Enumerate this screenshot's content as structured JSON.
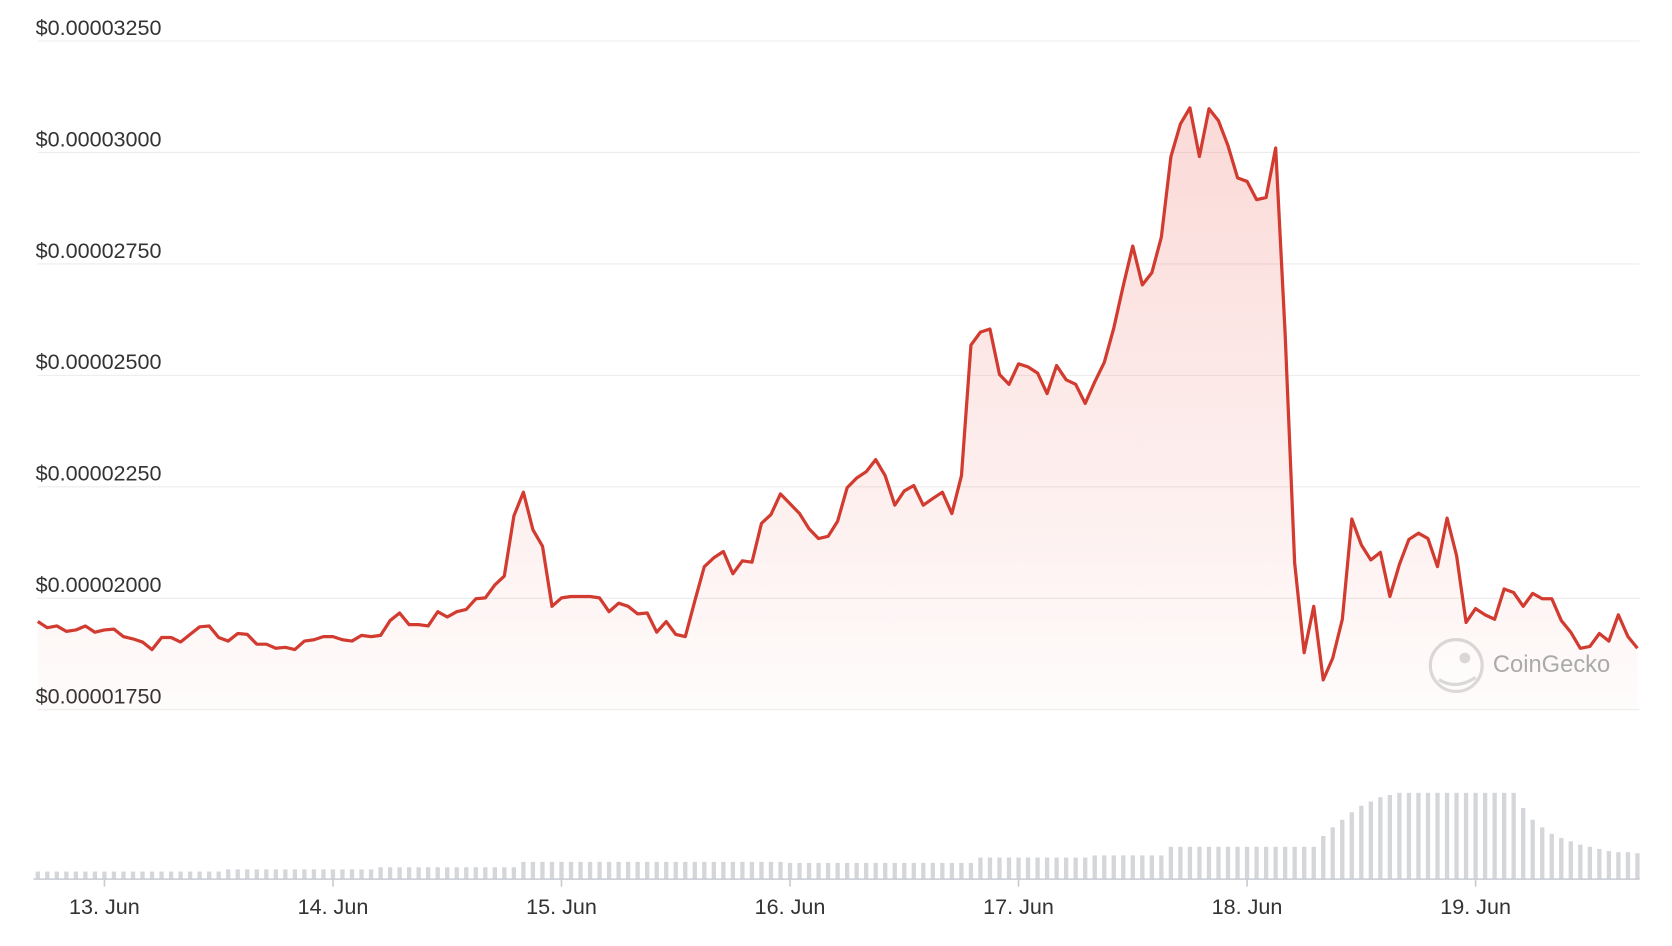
{
  "chart_data": {
    "type": "line",
    "color": "#d23b2f",
    "grid": true,
    "watermark": "CoinGecko",
    "ylim": [
      1.75e-05,
      3.25e-05
    ],
    "yticks": [
      {
        "value": 1.75e-05,
        "label": "$0.00001750"
      },
      {
        "value": 2e-05,
        "label": "$0.00002000"
      },
      {
        "value": 2.25e-05,
        "label": "$0.00002250"
      },
      {
        "value": 2.5e-05,
        "label": "$0.00002500"
      },
      {
        "value": 2.75e-05,
        "label": "$0.00002750"
      },
      {
        "value": 3e-05,
        "label": "$0.00003000"
      },
      {
        "value": 3.25e-05,
        "label": "$0.00003250"
      }
    ],
    "categories": [
      null,
      null,
      null,
      null,
      null,
      null,
      null,
      "13. Jun",
      null,
      null,
      null,
      null,
      null,
      null,
      null,
      null,
      null,
      null,
      null,
      null,
      null,
      null,
      null,
      null,
      null,
      null,
      null,
      null,
      null,
      null,
      null,
      "14. Jun",
      null,
      null,
      null,
      null,
      null,
      null,
      null,
      null,
      null,
      null,
      null,
      null,
      null,
      null,
      null,
      null,
      null,
      null,
      null,
      null,
      null,
      null,
      null,
      "15. Jun",
      null,
      null,
      null,
      null,
      null,
      null,
      null,
      null,
      null,
      null,
      null,
      null,
      null,
      null,
      null,
      null,
      null,
      null,
      null,
      null,
      null,
      null,
      null,
      "16. Jun",
      null,
      null,
      null,
      null,
      null,
      null,
      null,
      null,
      null,
      null,
      null,
      null,
      null,
      null,
      null,
      null,
      null,
      null,
      null,
      null,
      null,
      null,
      null,
      "17. Jun",
      null,
      null,
      null,
      null,
      null,
      null,
      null,
      null,
      null,
      null,
      null,
      null,
      null,
      null,
      null,
      null,
      null,
      null,
      null,
      null,
      null,
      null,
      null,
      "18. Jun",
      null,
      null,
      null,
      null,
      null,
      null,
      null,
      null,
      null,
      null,
      null,
      null,
      null,
      null,
      null,
      null,
      null,
      null,
      null,
      null,
      null,
      null,
      null,
      "19. Jun",
      null,
      null,
      null,
      null,
      null,
      null,
      null,
      null,
      null,
      null,
      null,
      null,
      null,
      null,
      null,
      null,
      null
    ],
    "values": [
      1.948e-05,
      1.934e-05,
      1.938e-05,
      1.926e-05,
      1.929e-05,
      1.938e-05,
      1.924e-05,
      1.929e-05,
      1.931e-05,
      1.914e-05,
      1.909e-05,
      1.902e-05,
      1.885e-05,
      1.912e-05,
      1.912e-05,
      1.902e-05,
      1.919e-05,
      1.936e-05,
      1.938e-05,
      1.912e-05,
      1.904e-05,
      1.921e-05,
      1.919e-05,
      1.897e-05,
      1.897e-05,
      1.888e-05,
      1.89e-05,
      1.885e-05,
      1.904e-05,
      1.907e-05,
      1.914e-05,
      1.914e-05,
      1.907e-05,
      1.904e-05,
      1.917e-05,
      1.914e-05,
      1.917e-05,
      1.95e-05,
      1.967e-05,
      1.941e-05,
      1.941e-05,
      1.938e-05,
      1.97e-05,
      1.958e-05,
      1.97e-05,
      1.975e-05,
      1.999e-05,
      2.001e-05,
      2.03e-05,
      2.05e-05,
      2.185e-05,
      2.238e-05,
      2.154e-05,
      2.117e-05,
      1.982e-05,
      2.001e-05,
      2.004e-05,
      2.004e-05,
      2.004e-05,
      2.001e-05,
      1.97e-05,
      1.989e-05,
      1.982e-05,
      1.965e-05,
      1.967e-05,
      1.924e-05,
      1.948e-05,
      1.919e-05,
      1.914e-05,
      1.994e-05,
      2.071e-05,
      2.091e-05,
      2.105e-05,
      2.055e-05,
      2.084e-05,
      2.081e-05,
      2.168e-05,
      2.188e-05,
      2.234e-05,
      2.212e-05,
      2.19e-05,
      2.156e-05,
      2.134e-05,
      2.139e-05,
      2.173e-05,
      2.248e-05,
      2.27e-05,
      2.284e-05,
      2.311e-05,
      2.275e-05,
      2.209e-05,
      2.241e-05,
      2.253e-05,
      2.209e-05,
      2.224e-05,
      2.238e-05,
      2.19e-05,
      2.275e-05,
      2.568e-05,
      2.597e-05,
      2.604e-05,
      2.502e-05,
      2.48e-05,
      2.526e-05,
      2.519e-05,
      2.505e-05,
      2.459e-05,
      2.522e-05,
      2.49e-05,
      2.48e-05,
      2.437e-05,
      2.485e-05,
      2.529e-05,
      2.606e-05,
      2.701e-05,
      2.79e-05,
      2.703e-05,
      2.73e-05,
      2.81e-05,
      2.991e-05,
      3.064e-05,
      3.1e-05,
      2.991e-05,
      3.098e-05,
      3.071e-05,
      3.015e-05,
      2.943e-05,
      2.935e-05,
      2.894e-05,
      2.899e-05,
      3.01e-05,
      2.592e-05,
      2.079e-05,
      1.878e-05,
      1.982e-05,
      1.817e-05,
      1.866e-05,
      1.953e-05,
      2.178e-05,
      2.12e-05,
      2.086e-05,
      2.103e-05,
      2.004e-05,
      2.076e-05,
      2.132e-05,
      2.146e-05,
      2.134e-05,
      2.071e-05,
      2.18e-05,
      2.096e-05,
      1.946e-05,
      1.977e-05,
      1.963e-05,
      1.953e-05,
      2.021e-05,
      2.013e-05,
      1.982e-05,
      2.011e-05,
      1.999e-05,
      1.999e-05,
      1.95e-05,
      1.924e-05,
      1.888e-05,
      1.892e-05,
      1.921e-05,
      1.904e-05,
      1.963e-05,
      1.914e-05,
      1.888e-05
    ],
    "volume": {
      "color": "#d4d6da",
      "values": [
        7,
        7,
        7,
        7,
        7,
        7,
        7,
        7,
        7,
        7,
        7,
        7,
        7,
        7,
        7,
        7,
        7,
        7,
        7,
        7,
        9,
        9,
        9,
        9,
        9,
        9,
        9,
        9,
        9,
        9,
        9,
        9,
        9,
        9,
        9,
        9,
        11,
        11,
        11,
        11,
        11,
        11,
        11,
        11,
        11,
        11,
        11,
        11,
        11,
        11,
        11,
        16,
        16,
        16,
        16,
        16,
        16,
        16,
        16,
        16,
        16,
        16,
        16,
        16,
        16,
        16,
        16,
        16,
        16,
        16,
        16,
        16,
        16,
        16,
        16,
        16,
        16,
        16,
        16,
        15,
        15,
        15,
        15,
        15,
        15,
        15,
        15,
        15,
        15,
        15,
        15,
        15,
        15,
        15,
        15,
        15,
        15,
        15,
        15,
        20,
        20,
        20,
        20,
        20,
        20,
        20,
        20,
        20,
        20,
        20,
        20,
        22,
        22,
        22,
        22,
        22,
        22,
        22,
        22,
        30,
        30,
        30,
        30,
        30,
        30,
        30,
        30,
        30,
        30,
        30,
        30,
        30,
        30,
        30,
        30,
        40,
        48,
        55,
        62,
        68,
        72,
        76,
        78,
        80,
        80,
        80,
        80,
        80,
        80,
        80,
        80,
        80,
        80,
        80,
        80,
        80,
        66,
        55,
        48,
        42,
        38,
        35,
        32,
        30,
        28,
        26,
        25,
        25,
        24
      ]
    }
  }
}
